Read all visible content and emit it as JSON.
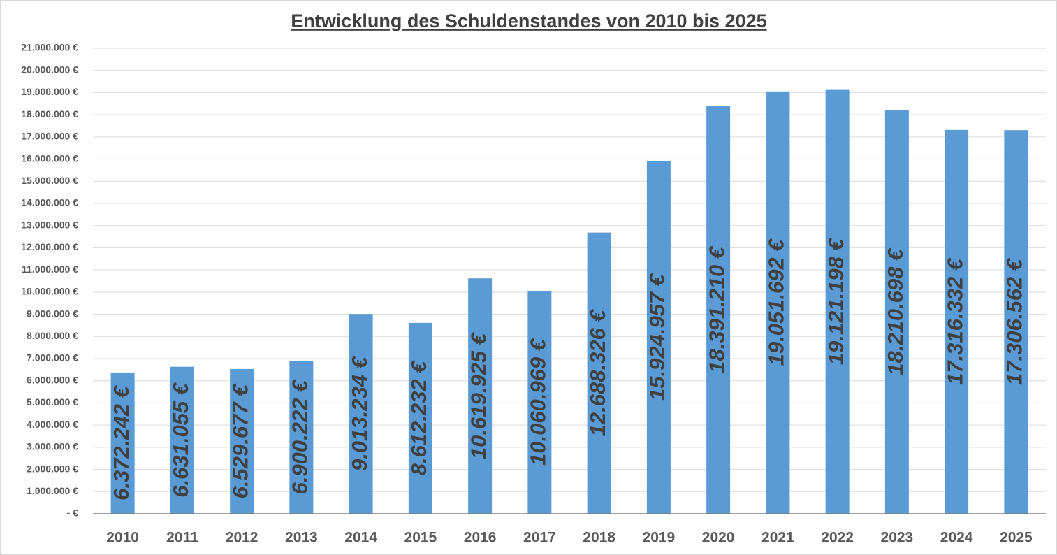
{
  "chart_data": {
    "type": "bar",
    "title": "Entwicklung des Schuldenstandes von 2010 bis 2025",
    "categories": [
      "2010",
      "2011",
      "2012",
      "2013",
      "2014",
      "2015",
      "2016",
      "2017",
      "2018",
      "2019",
      "2020",
      "2021",
      "2022",
      "2023",
      "2024",
      "2025"
    ],
    "values": [
      6372242,
      6631055,
      6529677,
      6900222,
      9013234,
      8612232,
      10619925,
      10060969,
      12688326,
      15924957,
      18391210,
      19051692,
      19121198,
      18210698,
      17316332,
      17306562
    ],
    "value_labels": [
      "6.372.242 €",
      "6.631.055 €",
      "6.529.677 €",
      "6.900.222 €",
      "9.013.234 €",
      "8.612.232 €",
      "10.619.925 €",
      "10.060.969 €",
      "12.688.326 €",
      "15.924.957 €",
      "18.391.210 €",
      "19.051.692 €",
      "19.121.198 €",
      "18.210.698 €",
      "17.316.332 €",
      "17.306.562 €"
    ],
    "color": "#5b9bd5",
    "ylim": [
      0,
      21000000
    ],
    "yticks": [
      {
        "value": 0,
        "label": "-  €"
      },
      {
        "value": 1000000,
        "label": "1.000.000 €"
      },
      {
        "value": 2000000,
        "label": "2.000.000 €"
      },
      {
        "value": 3000000,
        "label": "3.000.000 €"
      },
      {
        "value": 4000000,
        "label": "4.000.000 €"
      },
      {
        "value": 5000000,
        "label": "5.000.000 €"
      },
      {
        "value": 6000000,
        "label": "6.000.000 €"
      },
      {
        "value": 7000000,
        "label": "7.000.000 €"
      },
      {
        "value": 8000000,
        "label": "8.000.000 €"
      },
      {
        "value": 9000000,
        "label": "9.000.000 €"
      },
      {
        "value": 10000000,
        "label": "10.000.000 €"
      },
      {
        "value": 11000000,
        "label": "11.000.000 €"
      },
      {
        "value": 12000000,
        "label": "12.000.000 €"
      },
      {
        "value": 13000000,
        "label": "13.000.000 €"
      },
      {
        "value": 14000000,
        "label": "14.000.000 €"
      },
      {
        "value": 15000000,
        "label": "15.000.000 €"
      },
      {
        "value": 16000000,
        "label": "16.000.000 €"
      },
      {
        "value": 17000000,
        "label": "17.000.000 €"
      },
      {
        "value": 18000000,
        "label": "18.000.000 €"
      },
      {
        "value": 19000000,
        "label": "19.000.000 €"
      },
      {
        "value": 20000000,
        "label": "20.000.000 €"
      },
      {
        "value": 21000000,
        "label": "21.000.000 €"
      }
    ],
    "grid": true
  }
}
